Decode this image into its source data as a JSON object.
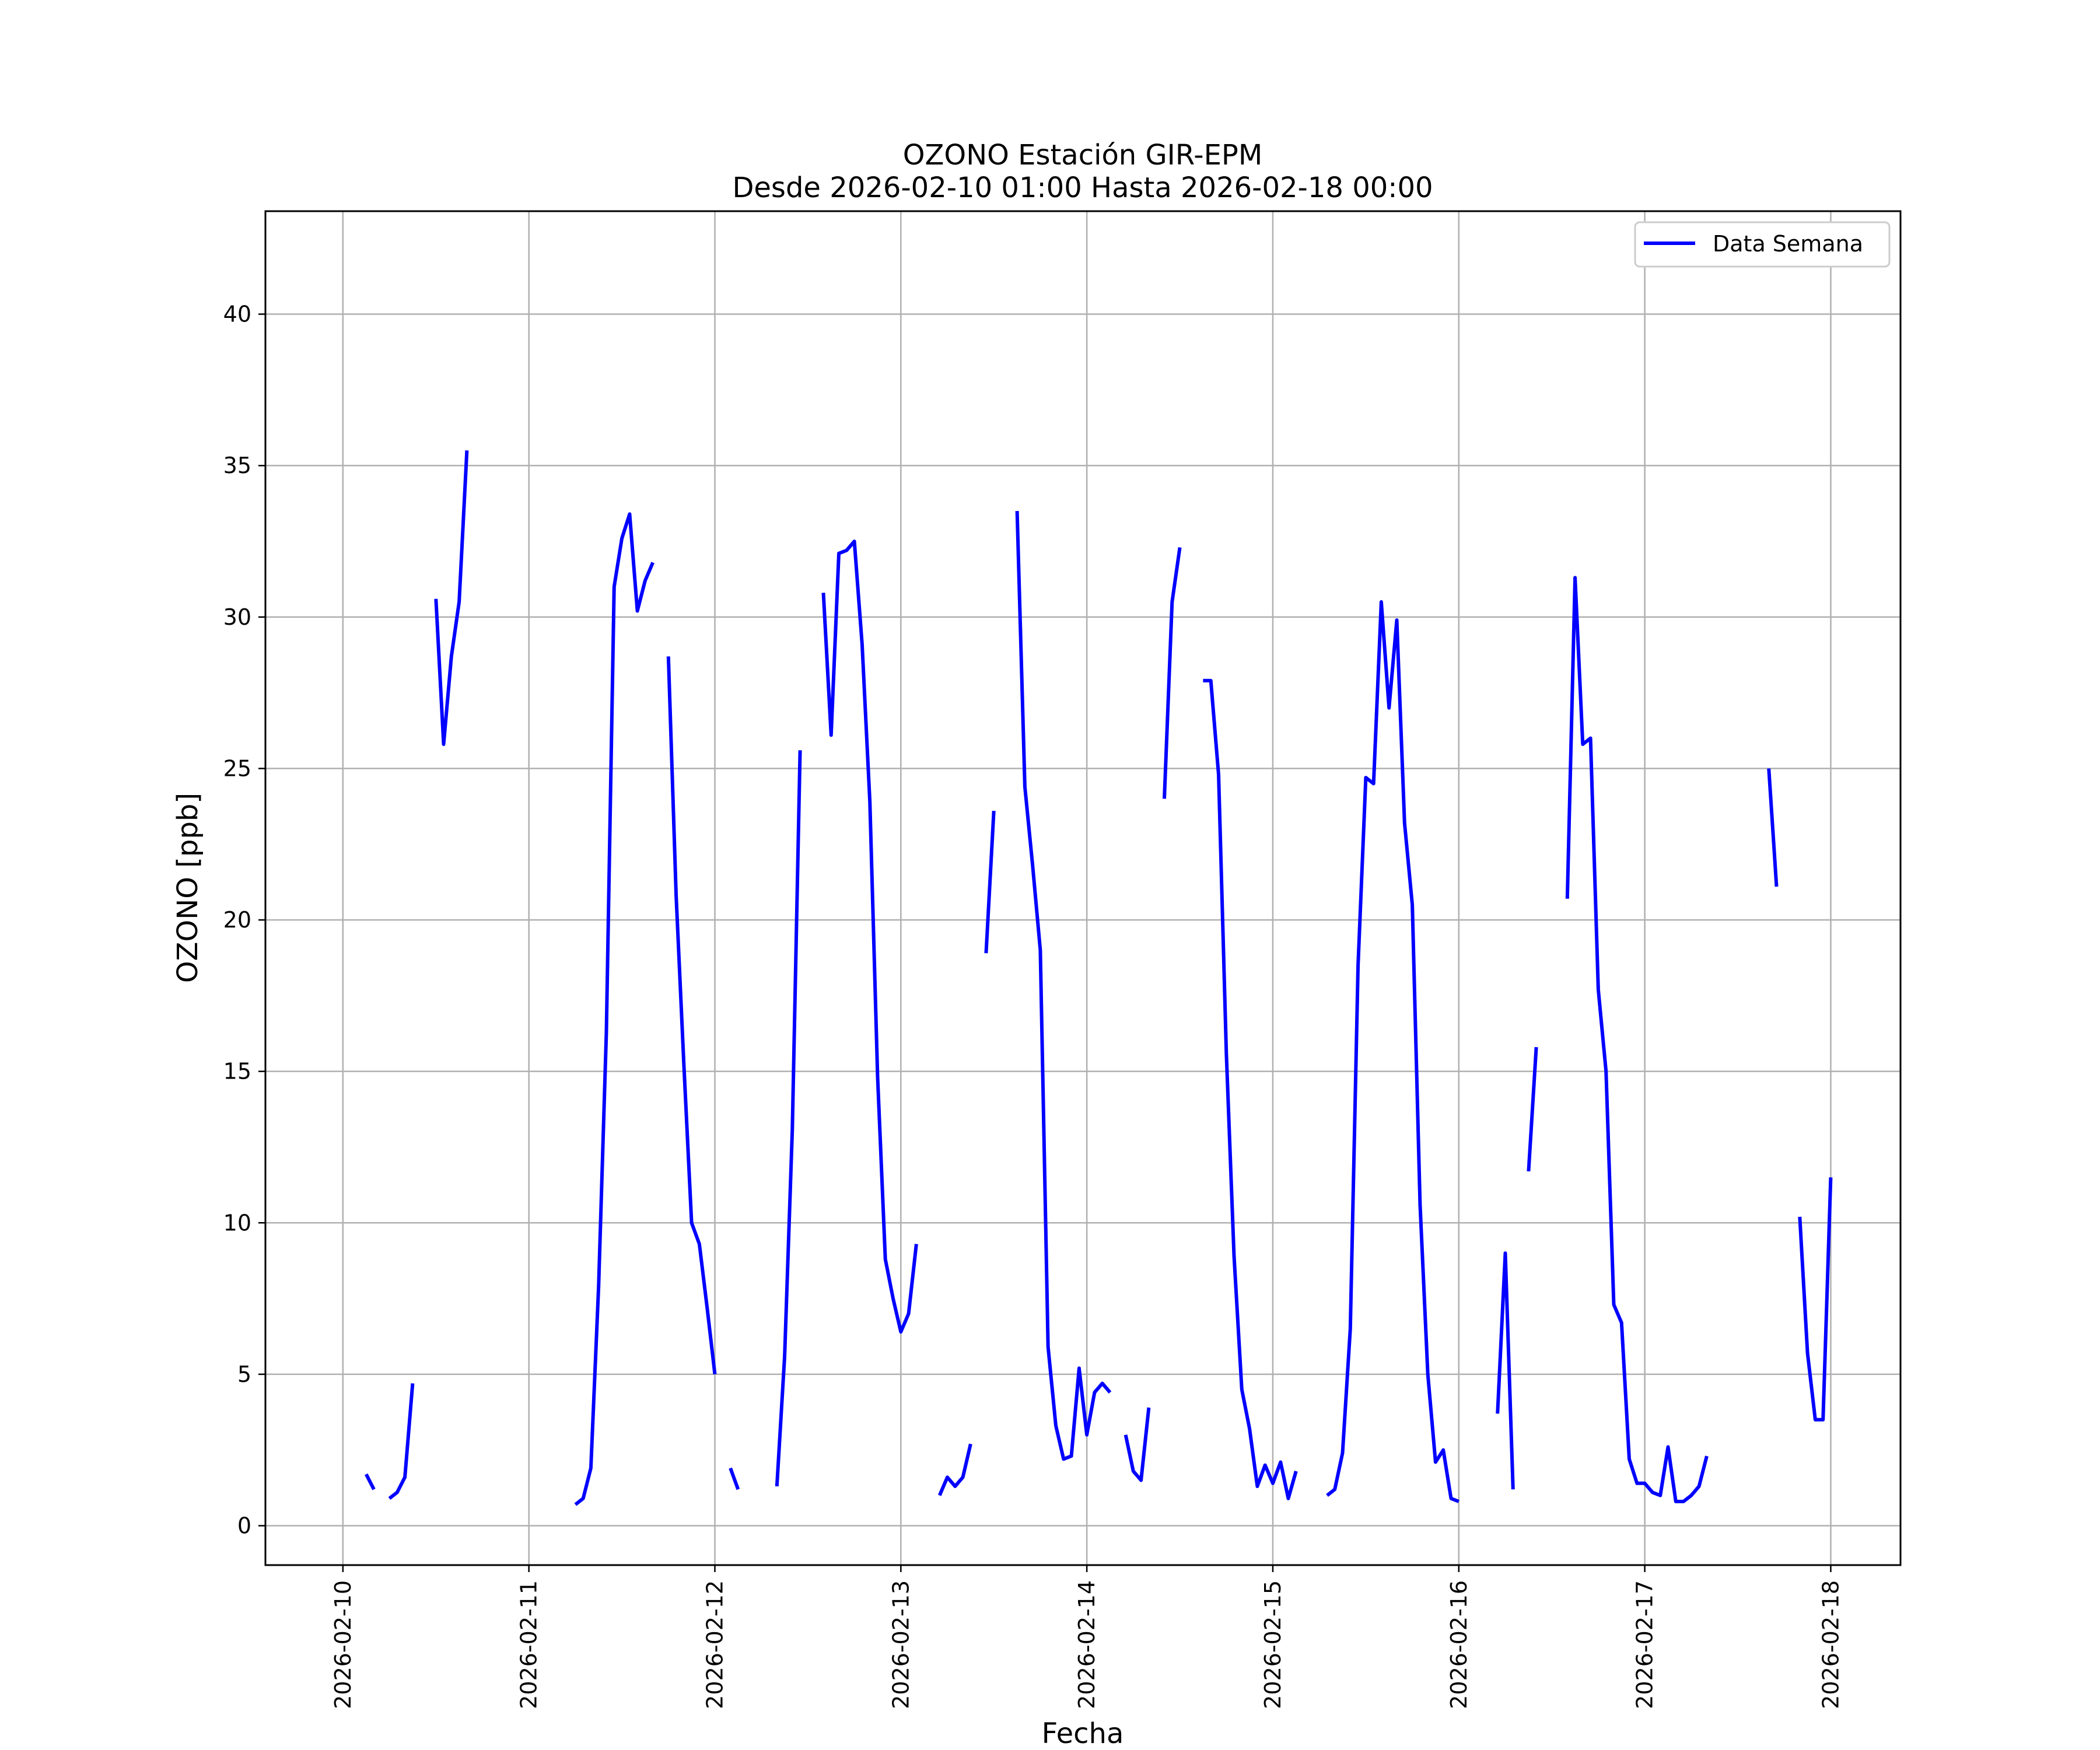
{
  "chart_data": {
    "type": "line",
    "title": "OZONO Estación GIR-EPM",
    "subtitle": "Desde 2026-02-10 01:00 Hasta 2026-02-18 00:00",
    "xlabel": "Fecha",
    "ylabel": "OZONO [ppb]",
    "ylim": [
      -1.3,
      43.4
    ],
    "xlim": [
      "2026-02-09 14:00",
      "2026-02-18 09:00"
    ],
    "x_ticks": [
      "2026-02-10",
      "2026-02-11",
      "2026-02-12",
      "2026-02-13",
      "2026-02-14",
      "2026-02-15",
      "2026-02-16",
      "2026-02-17",
      "2026-02-18"
    ],
    "y_ticks": [
      0,
      5,
      10,
      15,
      20,
      25,
      30,
      35,
      40
    ],
    "grid": true,
    "legend_position": "top-right",
    "colors": {
      "series": "#0000ff",
      "grid": "#b0b0b0"
    },
    "series": [
      {
        "name": "Data Semana",
        "segments": [
          [
            [
              "2026-02-10 03:00",
              1.7
            ],
            [
              "2026-02-10 04:00",
              1.2
            ]
          ],
          [
            [
              "2026-02-10 06:00",
              0.9
            ],
            [
              "2026-02-10 07:00",
              1.1
            ],
            [
              "2026-02-10 08:00",
              1.6
            ],
            [
              "2026-02-10 09:00",
              4.7
            ]
          ],
          [
            [
              "2026-02-10 12:00",
              30.6
            ],
            [
              "2026-02-10 13:00",
              25.8
            ],
            [
              "2026-02-10 14:00",
              28.7
            ],
            [
              "2026-02-10 15:00",
              30.5
            ],
            [
              "2026-02-10 16:00",
              35.5
            ]
          ],
          [
            [
              "2026-02-11 06:00",
              0.7
            ],
            [
              "2026-02-11 07:00",
              0.9
            ],
            [
              "2026-02-11 08:00",
              1.9
            ],
            [
              "2026-02-11 09:00",
              7.9
            ],
            [
              "2026-02-11 10:00",
              16.3
            ],
            [
              "2026-02-11 11:00",
              31.0
            ],
            [
              "2026-02-11 12:00",
              32.6
            ],
            [
              "2026-02-11 13:00",
              33.4
            ],
            [
              "2026-02-11 14:00",
              30.2
            ],
            [
              "2026-02-11 15:00",
              31.2
            ],
            [
              "2026-02-11 16:00",
              31.8
            ]
          ],
          [
            [
              "2026-02-11 18:00",
              28.7
            ],
            [
              "2026-02-11 19:00",
              20.8
            ],
            [
              "2026-02-11 20:00",
              15.2
            ],
            [
              "2026-02-11 21:00",
              10.0
            ],
            [
              "2026-02-11 22:00",
              9.3
            ],
            [
              "2026-02-11 23:00",
              7.2
            ],
            [
              "2026-02-12 00:00",
              5.0
            ]
          ],
          [
            [
              "2026-02-12 02:00",
              1.9
            ],
            [
              "2026-02-12 03:00",
              1.2
            ]
          ],
          [
            [
              "2026-02-12 08:00",
              1.3
            ],
            [
              "2026-02-12 09:00",
              5.6
            ],
            [
              "2026-02-12 10:00",
              13.1
            ],
            [
              "2026-02-12 11:00",
              25.6
            ]
          ],
          [
            [
              "2026-02-12 14:00",
              30.8
            ],
            [
              "2026-02-12 15:00",
              26.1
            ],
            [
              "2026-02-12 16:00",
              32.1
            ],
            [
              "2026-02-12 17:00",
              32.2
            ],
            [
              "2026-02-12 18:00",
              32.5
            ],
            [
              "2026-02-12 19:00",
              29.1
            ],
            [
              "2026-02-12 20:00",
              23.9
            ],
            [
              "2026-02-12 21:00",
              14.8
            ],
            [
              "2026-02-12 22:00",
              8.8
            ],
            [
              "2026-02-12 23:00",
              7.5
            ],
            [
              "2026-02-13 00:00",
              6.4
            ],
            [
              "2026-02-13 01:00",
              7.0
            ],
            [
              "2026-02-13 02:00",
              9.3
            ]
          ],
          [
            [
              "2026-02-13 05:00",
              1.0
            ],
            [
              "2026-02-13 06:00",
              1.6
            ],
            [
              "2026-02-13 07:00",
              1.3
            ],
            [
              "2026-02-13 08:00",
              1.6
            ],
            [
              "2026-02-13 09:00",
              2.7
            ]
          ],
          [
            [
              "2026-02-13 11:00",
              18.9
            ],
            [
              "2026-02-13 12:00",
              23.6
            ]
          ],
          [
            [
              "2026-02-13 15:00",
              33.5
            ],
            [
              "2026-02-13 16:00",
              24.4
            ],
            [
              "2026-02-13 17:00",
              21.8
            ],
            [
              "2026-02-13 18:00",
              19.0
            ],
            [
              "2026-02-13 19:00",
              5.9
            ],
            [
              "2026-02-13 20:00",
              3.3
            ],
            [
              "2026-02-13 21:00",
              2.2
            ],
            [
              "2026-02-13 22:00",
              2.3
            ],
            [
              "2026-02-13 23:00",
              5.2
            ],
            [
              "2026-02-14 00:00",
              3.0
            ],
            [
              "2026-02-14 01:00",
              4.4
            ],
            [
              "2026-02-14 02:00",
              4.7
            ],
            [
              "2026-02-14 03:00",
              4.4
            ]
          ],
          [
            [
              "2026-02-14 05:00",
              3.0
            ],
            [
              "2026-02-14 06:00",
              1.8
            ],
            [
              "2026-02-14 07:00",
              1.5
            ],
            [
              "2026-02-14 08:00",
              3.9
            ]
          ],
          [
            [
              "2026-02-14 10:00",
              24.0
            ],
            [
              "2026-02-14 11:00",
              30.5
            ],
            [
              "2026-02-14 12:00",
              32.3
            ]
          ],
          [
            [
              "2026-02-14 15:00",
              27.9
            ],
            [
              "2026-02-14 16:00",
              27.9
            ],
            [
              "2026-02-14 17:00",
              24.8
            ],
            [
              "2026-02-14 18:00",
              15.6
            ],
            [
              "2026-02-14 19:00",
              8.9
            ],
            [
              "2026-02-14 20:00",
              4.5
            ],
            [
              "2026-02-14 21:00",
              3.2
            ],
            [
              "2026-02-14 22:00",
              1.3
            ],
            [
              "2026-02-14 23:00",
              2.0
            ],
            [
              "2026-02-15 00:00",
              1.4
            ],
            [
              "2026-02-15 01:00",
              2.1
            ],
            [
              "2026-02-15 02:00",
              0.9
            ],
            [
              "2026-02-15 03:00",
              1.8
            ]
          ],
          [
            [
              "2026-02-15 07:00",
              1.0
            ],
            [
              "2026-02-15 08:00",
              1.2
            ],
            [
              "2026-02-15 09:00",
              2.4
            ],
            [
              "2026-02-15 10:00",
              6.5
            ],
            [
              "2026-02-15 11:00",
              18.5
            ],
            [
              "2026-02-15 12:00",
              24.7
            ],
            [
              "2026-02-15 13:00",
              24.5
            ],
            [
              "2026-02-15 14:00",
              30.5
            ],
            [
              "2026-02-15 15:00",
              27.0
            ],
            [
              "2026-02-15 16:00",
              29.9
            ],
            [
              "2026-02-15 17:00",
              23.2
            ],
            [
              "2026-02-15 18:00",
              20.5
            ],
            [
              "2026-02-15 19:00",
              10.6
            ],
            [
              "2026-02-15 20:00",
              5.0
            ],
            [
              "2026-02-15 21:00",
              2.1
            ],
            [
              "2026-02-15 22:00",
              2.5
            ],
            [
              "2026-02-15 23:00",
              0.9
            ],
            [
              "2026-02-16 00:00",
              0.8
            ]
          ],
          [
            [
              "2026-02-16 05:00",
              3.7
            ],
            [
              "2026-02-16 06:00",
              9.0
            ],
            [
              "2026-02-16 07:00",
              1.2
            ]
          ],
          [
            [
              "2026-02-16 09:00",
              11.7
            ],
            [
              "2026-02-16 10:00",
              15.8
            ]
          ],
          [
            [
              "2026-02-16 14:00",
              20.7
            ],
            [
              "2026-02-16 15:00",
              31.3
            ],
            [
              "2026-02-16 16:00",
              25.8
            ],
            [
              "2026-02-16 17:00",
              26.0
            ],
            [
              "2026-02-16 18:00",
              17.7
            ],
            [
              "2026-02-16 19:00",
              15.0
            ],
            [
              "2026-02-16 20:00",
              7.3
            ],
            [
              "2026-02-16 21:00",
              6.7
            ],
            [
              "2026-02-16 22:00",
              2.2
            ],
            [
              "2026-02-16 23:00",
              1.4
            ],
            [
              "2026-02-17 00:00",
              1.4
            ],
            [
              "2026-02-17 01:00",
              1.1
            ],
            [
              "2026-02-17 02:00",
              1.0
            ],
            [
              "2026-02-17 03:00",
              2.6
            ],
            [
              "2026-02-17 04:00",
              0.8
            ],
            [
              "2026-02-17 05:00",
              0.8
            ],
            [
              "2026-02-17 06:00",
              1.0
            ],
            [
              "2026-02-17 07:00",
              1.3
            ],
            [
              "2026-02-17 08:00",
              2.3
            ]
          ],
          [
            [
              "2026-02-17 16:00",
              25.0
            ],
            [
              "2026-02-17 17:00",
              21.1
            ]
          ],
          [
            [
              "2026-02-17 20:00",
              10.2
            ],
            [
              "2026-02-17 21:00",
              5.7
            ],
            [
              "2026-02-17 22:00",
              3.5
            ],
            [
              "2026-02-17 23:00",
              3.5
            ],
            [
              "2026-02-18 00:00",
              11.5
            ]
          ]
        ]
      }
    ]
  }
}
